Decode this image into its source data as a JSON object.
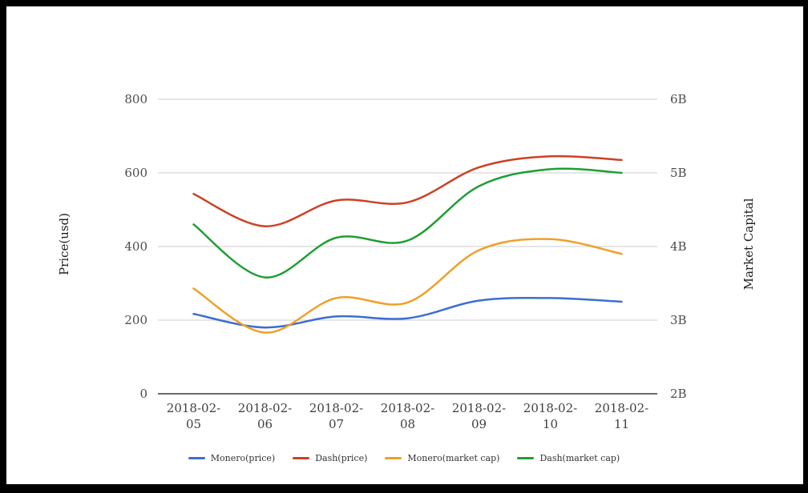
{
  "page": {
    "background": "#ffffff",
    "frame_color": "#000000",
    "gridline_color": "#cccccc",
    "axis_line_color": "#3c3c3c",
    "tick_text_color": "#4c4c4c"
  },
  "chart_data": {
    "type": "line",
    "x": [
      "2018-02-05",
      "2018-02-06",
      "2018-02-07",
      "2018-02-08",
      "2018-02-09",
      "2018-02-10",
      "2018-02-11"
    ],
    "series": [
      {
        "name": "Monero(price)",
        "axis": "left",
        "color": "#3d6ecf",
        "values": [
          217,
          180,
          210,
          205,
          253,
          260,
          250
        ]
      },
      {
        "name": "Dash(price)",
        "axis": "left",
        "color": "#cc4125",
        "values": [
          543,
          455,
          525,
          520,
          615,
          645,
          635
        ]
      },
      {
        "name": "Monero(market cap)",
        "axis": "right",
        "color": "#f0a029",
        "unit": "B",
        "values": [
          3.43,
          2.83,
          3.3,
          3.24,
          3.95,
          4.1,
          3.9
        ]
      },
      {
        "name": "Dash(market cap)",
        "axis": "right",
        "color": "#1f9e35",
        "unit": "B",
        "values": [
          4.3,
          3.58,
          4.12,
          4.08,
          4.82,
          5.05,
          5.0
        ]
      }
    ],
    "axes": {
      "left": {
        "label": "Price(usd)",
        "ticks": [
          0,
          200,
          400,
          600,
          800
        ],
        "range": [
          0,
          800
        ]
      },
      "right": {
        "label": "Market Capital",
        "tick_labels": [
          "2B",
          "3B",
          "4B",
          "5B",
          "6B"
        ],
        "tick_values_billions": [
          2,
          3,
          4,
          5,
          6
        ],
        "range_billions": [
          2,
          6
        ]
      }
    },
    "legend": {
      "position": "bottom",
      "entries": [
        "Monero(price)",
        "Dash(price)",
        "Monero(market cap)",
        "Dash(market cap)"
      ]
    },
    "grid": true
  }
}
